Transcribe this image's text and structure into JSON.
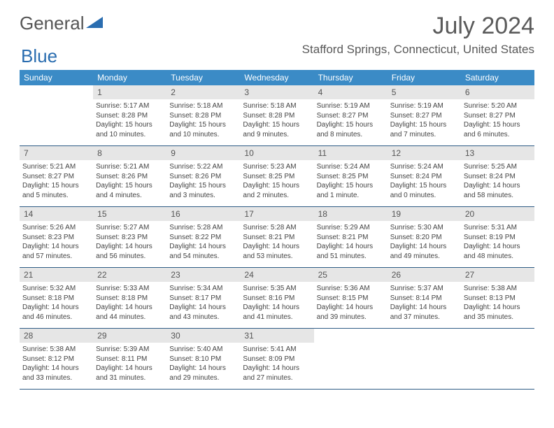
{
  "logo": {
    "text1": "General",
    "text2": "Blue"
  },
  "title": "July 2024",
  "location": "Stafford Springs, Connecticut, United States",
  "colors": {
    "header_bg": "#3b8bc6",
    "daynum_bg": "#e6e6e6",
    "week_border": "#2f5c85",
    "text": "#444444",
    "title_color": "#5a5a5a",
    "logo_blue": "#2a6db0"
  },
  "day_names": [
    "Sunday",
    "Monday",
    "Tuesday",
    "Wednesday",
    "Thursday",
    "Friday",
    "Saturday"
  ],
  "weeks": [
    [
      {
        "n": "",
        "sr": "",
        "ss": "",
        "dl": ""
      },
      {
        "n": "1",
        "sr": "5:17 AM",
        "ss": "8:28 PM",
        "dl": "15 hours and 10 minutes."
      },
      {
        "n": "2",
        "sr": "5:18 AM",
        "ss": "8:28 PM",
        "dl": "15 hours and 10 minutes."
      },
      {
        "n": "3",
        "sr": "5:18 AM",
        "ss": "8:28 PM",
        "dl": "15 hours and 9 minutes."
      },
      {
        "n": "4",
        "sr": "5:19 AM",
        "ss": "8:27 PM",
        "dl": "15 hours and 8 minutes."
      },
      {
        "n": "5",
        "sr": "5:19 AM",
        "ss": "8:27 PM",
        "dl": "15 hours and 7 minutes."
      },
      {
        "n": "6",
        "sr": "5:20 AM",
        "ss": "8:27 PM",
        "dl": "15 hours and 6 minutes."
      }
    ],
    [
      {
        "n": "7",
        "sr": "5:21 AM",
        "ss": "8:27 PM",
        "dl": "15 hours and 5 minutes."
      },
      {
        "n": "8",
        "sr": "5:21 AM",
        "ss": "8:26 PM",
        "dl": "15 hours and 4 minutes."
      },
      {
        "n": "9",
        "sr": "5:22 AM",
        "ss": "8:26 PM",
        "dl": "15 hours and 3 minutes."
      },
      {
        "n": "10",
        "sr": "5:23 AM",
        "ss": "8:25 PM",
        "dl": "15 hours and 2 minutes."
      },
      {
        "n": "11",
        "sr": "5:24 AM",
        "ss": "8:25 PM",
        "dl": "15 hours and 1 minute."
      },
      {
        "n": "12",
        "sr": "5:24 AM",
        "ss": "8:24 PM",
        "dl": "15 hours and 0 minutes."
      },
      {
        "n": "13",
        "sr": "5:25 AM",
        "ss": "8:24 PM",
        "dl": "14 hours and 58 minutes."
      }
    ],
    [
      {
        "n": "14",
        "sr": "5:26 AM",
        "ss": "8:23 PM",
        "dl": "14 hours and 57 minutes."
      },
      {
        "n": "15",
        "sr": "5:27 AM",
        "ss": "8:23 PM",
        "dl": "14 hours and 56 minutes."
      },
      {
        "n": "16",
        "sr": "5:28 AM",
        "ss": "8:22 PM",
        "dl": "14 hours and 54 minutes."
      },
      {
        "n": "17",
        "sr": "5:28 AM",
        "ss": "8:21 PM",
        "dl": "14 hours and 53 minutes."
      },
      {
        "n": "18",
        "sr": "5:29 AM",
        "ss": "8:21 PM",
        "dl": "14 hours and 51 minutes."
      },
      {
        "n": "19",
        "sr": "5:30 AM",
        "ss": "8:20 PM",
        "dl": "14 hours and 49 minutes."
      },
      {
        "n": "20",
        "sr": "5:31 AM",
        "ss": "8:19 PM",
        "dl": "14 hours and 48 minutes."
      }
    ],
    [
      {
        "n": "21",
        "sr": "5:32 AM",
        "ss": "8:18 PM",
        "dl": "14 hours and 46 minutes."
      },
      {
        "n": "22",
        "sr": "5:33 AM",
        "ss": "8:18 PM",
        "dl": "14 hours and 44 minutes."
      },
      {
        "n": "23",
        "sr": "5:34 AM",
        "ss": "8:17 PM",
        "dl": "14 hours and 43 minutes."
      },
      {
        "n": "24",
        "sr": "5:35 AM",
        "ss": "8:16 PM",
        "dl": "14 hours and 41 minutes."
      },
      {
        "n": "25",
        "sr": "5:36 AM",
        "ss": "8:15 PM",
        "dl": "14 hours and 39 minutes."
      },
      {
        "n": "26",
        "sr": "5:37 AM",
        "ss": "8:14 PM",
        "dl": "14 hours and 37 minutes."
      },
      {
        "n": "27",
        "sr": "5:38 AM",
        "ss": "8:13 PM",
        "dl": "14 hours and 35 minutes."
      }
    ],
    [
      {
        "n": "28",
        "sr": "5:38 AM",
        "ss": "8:12 PM",
        "dl": "14 hours and 33 minutes."
      },
      {
        "n": "29",
        "sr": "5:39 AM",
        "ss": "8:11 PM",
        "dl": "14 hours and 31 minutes."
      },
      {
        "n": "30",
        "sr": "5:40 AM",
        "ss": "8:10 PM",
        "dl": "14 hours and 29 minutes."
      },
      {
        "n": "31",
        "sr": "5:41 AM",
        "ss": "8:09 PM",
        "dl": "14 hours and 27 minutes."
      },
      {
        "n": "",
        "sr": "",
        "ss": "",
        "dl": ""
      },
      {
        "n": "",
        "sr": "",
        "ss": "",
        "dl": ""
      },
      {
        "n": "",
        "sr": "",
        "ss": "",
        "dl": ""
      }
    ]
  ],
  "labels": {
    "sunrise": "Sunrise:",
    "sunset": "Sunset:",
    "daylight": "Daylight:"
  }
}
